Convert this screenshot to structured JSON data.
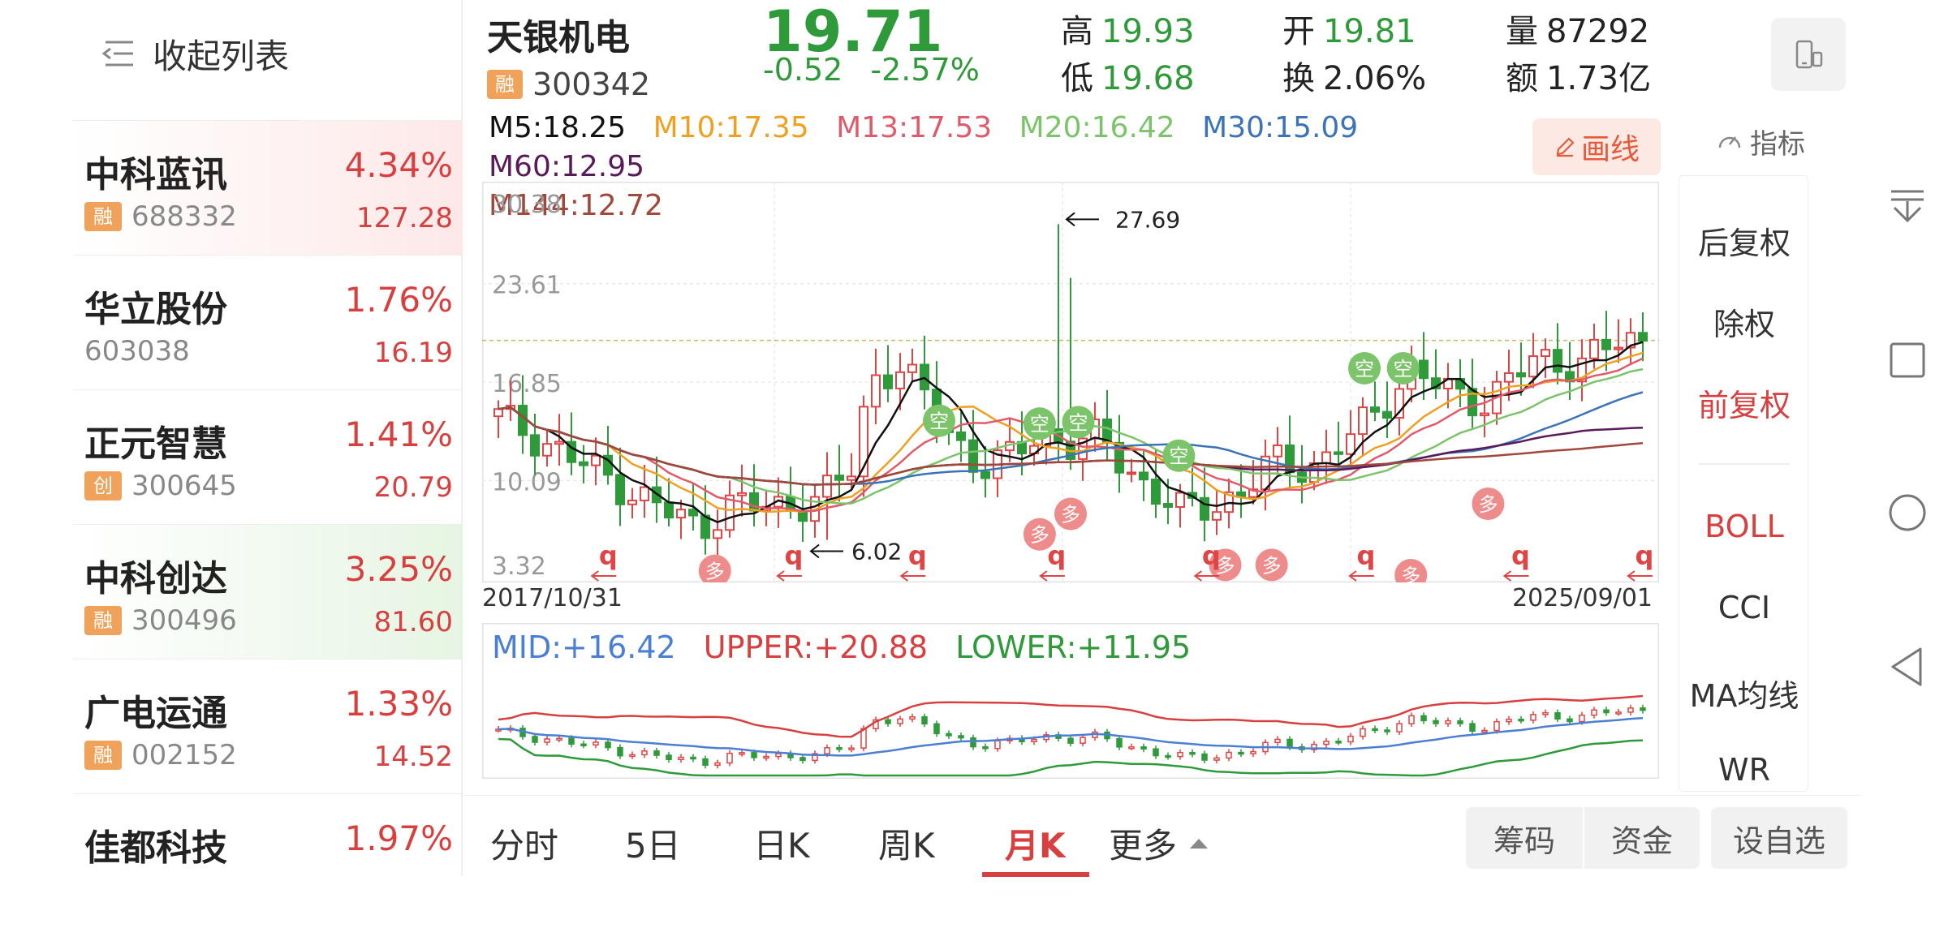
{
  "sidebar": {
    "collapse_label": "收起列表",
    "stocks": [
      {
        "name": "中科蓝讯",
        "badge": "融",
        "code": "688332",
        "pct": "4.34%",
        "price": "127.28",
        "highlight": "#fde8e8"
      },
      {
        "name": "华立股份",
        "badge": "",
        "code": "603038",
        "pct": "1.76%",
        "price": "16.19",
        "highlight": ""
      },
      {
        "name": "正元智慧",
        "badge": "创",
        "code": "300645",
        "pct": "1.41%",
        "price": "20.79",
        "highlight": ""
      },
      {
        "name": "中科创达",
        "badge": "融",
        "code": "300496",
        "pct": "3.25%",
        "price": "81.60",
        "highlight": "#e6f5e3"
      },
      {
        "name": "广电运通",
        "badge": "融",
        "code": "002152",
        "pct": "1.33%",
        "price": "14.52",
        "highlight": ""
      },
      {
        "name": "佳都科技",
        "badge": "",
        "code": "",
        "pct": "1.97%",
        "price": "",
        "highlight": ""
      }
    ]
  },
  "header": {
    "name": "天银机电",
    "badge": "融",
    "code": "300342",
    "price": "19.71",
    "change": "-0.52",
    "change_pct": "-2.57%",
    "high_label": "高",
    "high": "19.93",
    "low_label": "低",
    "low": "19.68",
    "open_label": "开",
    "open": "19.81",
    "turnover_label": "换",
    "turnover": "2.06%",
    "volume_label": "量",
    "volume": "87292",
    "amount_label": "额",
    "amount": "1.73亿"
  },
  "ma_legend": {
    "m5": "M5:18.25",
    "m10": "M10:17.35",
    "m13": "M13:17.53",
    "m20": "M20:16.42",
    "m30": "M30:15.09",
    "m60": "M60:12.95",
    "m144": "M144:12.72"
  },
  "draw_button_label": "画线",
  "indicator_label": "指标",
  "chart_data": {
    "type": "candlestick",
    "period": "monthly",
    "start_date": "2017/10/31",
    "end_date": "2025/09/01",
    "y_ticks": [
      "30.38",
      "23.61",
      "16.85",
      "10.09",
      "3.32"
    ],
    "ylim": [
      3.32,
      30.38
    ],
    "max_label": "27.69",
    "min_label": "6.02",
    "current_price": 19.71,
    "signal_empty": "空",
    "signal_long": "多",
    "signal_q": "q",
    "boll": {
      "mid": "MID:+16.42",
      "upper": "UPPER:+20.88",
      "lower": "LOWER:+11.95"
    }
  },
  "right_panel": {
    "items": [
      "后复权",
      "除权",
      "前复权",
      "BOLL",
      "CCI",
      "MA均线",
      "WR"
    ],
    "active": "前复权"
  },
  "bottom_bar": {
    "tabs": [
      "分时",
      "5日",
      "日K",
      "周K",
      "月K",
      "更多"
    ],
    "active_tab": "月K",
    "chips_label": "筹码",
    "funds_label": "资金",
    "watchlist_label": "设自选"
  },
  "colors": {
    "up": "#e04444",
    "down": "#2e9a3a",
    "m5": "#111111",
    "m10": "#f0a020",
    "m13": "#e05a6a",
    "m20": "#7cc46a",
    "m30": "#3b73b9",
    "m60": "#5a1a5a",
    "m144": "#a0483a",
    "boll_mid": "#4a7fd4",
    "boll_upper": "#d84040",
    "boll_lower": "#2e9a3a"
  }
}
